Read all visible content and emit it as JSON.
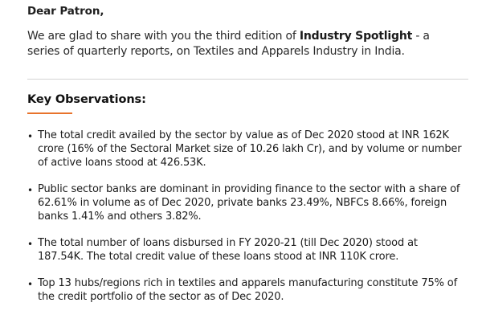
{
  "letter": {
    "greeting": "Dear Patron,",
    "intro_before": "We are glad to share with you the third edition of ",
    "intro_bold": "Industry Spotlight",
    "intro_after": " - a series of quarterly reports, on Textiles and Apparels Industry in India."
  },
  "observations": {
    "heading": "Key Observations:",
    "accent_color": "#e8732c",
    "bullet_glyph": "•",
    "items": [
      "The total credit availed by the sector by value as of Dec 2020 stood at INR 162K crore (16% of the Sectoral Market size of 10.26 lakh Cr), and by volume or number of active loans stood at 426.53K.",
      "Public sector banks are dominant in providing finance to the sector with a share of 62.61% in volume as of Dec 2020, private banks 23.49%, NBFCs 8.66%, foreign banks 1.41% and others 3.82%.",
      "The total number of loans disbursed in FY 2020-21 (till Dec 2020) stood at 187.54K. The total credit value of these loans stood at INR 110K crore.",
      "Top 13 hubs/regions rich in textiles and apparels manufacturing constitute 75% of the credit portfolio of the sector as of Dec 2020."
    ]
  }
}
